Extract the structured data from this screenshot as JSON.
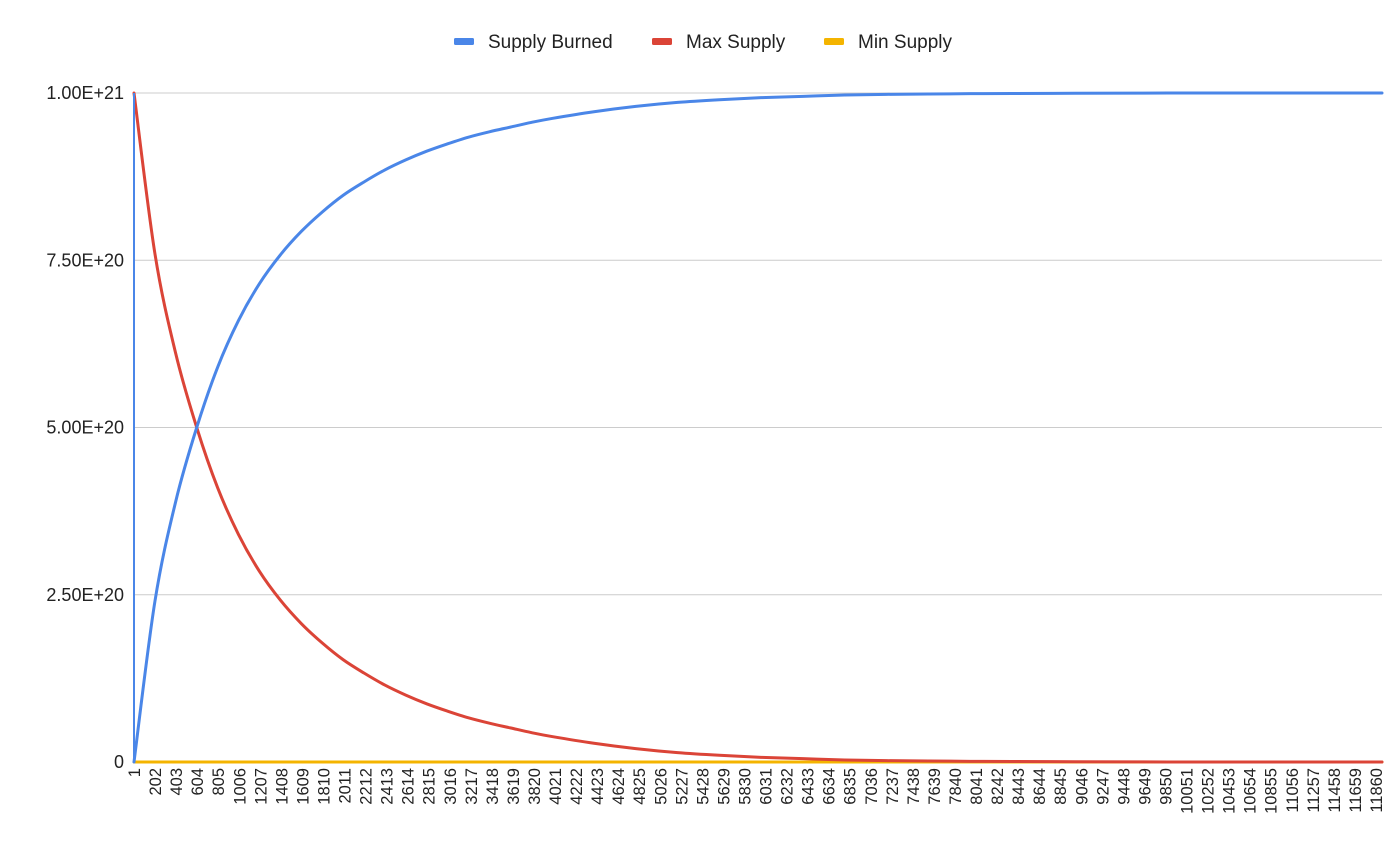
{
  "chart_data": {
    "type": "line",
    "title": "",
    "xlabel": "",
    "ylabel": "",
    "x_tick_labels": [
      "1",
      "202",
      "403",
      "604",
      "805",
      "1006",
      "1207",
      "1408",
      "1609",
      "1810",
      "2011",
      "2212",
      "2413",
      "2614",
      "2815",
      "3016",
      "3217",
      "3418",
      "3619",
      "3820",
      "4021",
      "4222",
      "4423",
      "4624",
      "4825",
      "5026",
      "5227",
      "5428",
      "5629",
      "5830",
      "6031",
      "6232",
      "6433",
      "6634",
      "6835",
      "7036",
      "7237",
      "7438",
      "7639",
      "7840",
      "8041",
      "8242",
      "8443",
      "8644",
      "8845",
      "9046",
      "9247",
      "9448",
      "9649",
      "9850",
      "10051",
      "10252",
      "10453",
      "10654",
      "10855",
      "11056",
      "11257",
      "11458",
      "11659",
      "11860"
    ],
    "xlim": [
      1,
      12000
    ],
    "y_ticks": [
      {
        "value": 0,
        "label": "0"
      },
      {
        "value": 2.5e+20,
        "label": "2.50E+20"
      },
      {
        "value": 5e+20,
        "label": "5.00E+20"
      },
      {
        "value": 7.5e+20,
        "label": "7.50E+20"
      },
      {
        "value": 1e+21,
        "label": "1.00E+21"
      }
    ],
    "ylim": [
      0,
      1e+21
    ],
    "grid": true,
    "legend_position": "top-center",
    "x": [
      1,
      202,
      403,
      604,
      805,
      1006,
      1207,
      1408,
      1609,
      1810,
      2011,
      2212,
      2413,
      2614,
      2815,
      3016,
      3217,
      3418,
      3619,
      3820,
      4021,
      4423,
      4825,
      5227,
      5629,
      6031,
      6433,
      6835,
      7237,
      7639,
      8041,
      8443,
      9046,
      9649,
      10252,
      10855,
      11458,
      12000
    ],
    "series": [
      {
        "name": "Supply Burned",
        "color": "#4a86e8",
        "values": [
          0,
          2.4e+20,
          3.9e+20,
          5e+20,
          5.9e+20,
          6.6e+20,
          7.15e+20,
          7.58e+20,
          7.93e+20,
          8.22e+20,
          8.47e+20,
          8.67e+20,
          8.85e+20,
          9e+20,
          9.13e+20,
          9.24e+20,
          9.34e+20,
          9.42e+20,
          9.49e+20,
          9.56e+20,
          9.62e+20,
          9.72e+20,
          9.8e+20,
          9.86e+20,
          9.9e+20,
          9.93e+20,
          9.95e+20,
          9.97e+20,
          9.98e+20,
          9.985e+20,
          9.99e+20,
          9.993e+20,
          9.996e+20,
          9.998e+20,
          1e+21,
          1e+21,
          1e+21,
          1e+21
        ]
      },
      {
        "name": "Max Supply",
        "color": "#db4437",
        "values": [
          1e+21,
          7.6e+20,
          6.1e+20,
          5e+20,
          4.1e+20,
          3.4e+20,
          2.85e+20,
          2.42e+20,
          2.07e+20,
          1.78e+20,
          1.53e+20,
          1.33e+20,
          1.15e+20,
          1e+20,
          8.7e+19,
          7.6e+19,
          6.6e+19,
          5.8e+19,
          5.1e+19,
          4.4e+19,
          3.8e+19,
          2.8e+19,
          2e+19,
          1.4e+19,
          1e+19,
          7e+18,
          5e+18,
          3e+18,
          2e+18,
          1.5e+18,
          1e+18,
          7e+17,
          4e+17,
          2e+17,
          0,
          0,
          0,
          0
        ]
      },
      {
        "name": "Min Supply",
        "color": "#f4b400",
        "values": [
          0,
          0,
          0,
          0,
          0,
          0,
          0,
          0,
          0,
          0,
          0,
          0,
          0,
          0,
          0,
          0,
          0,
          0,
          0,
          0,
          0,
          0,
          0,
          0,
          0,
          0,
          0,
          0,
          0,
          0,
          0,
          0,
          0,
          0,
          0,
          0,
          0,
          0
        ]
      }
    ]
  }
}
